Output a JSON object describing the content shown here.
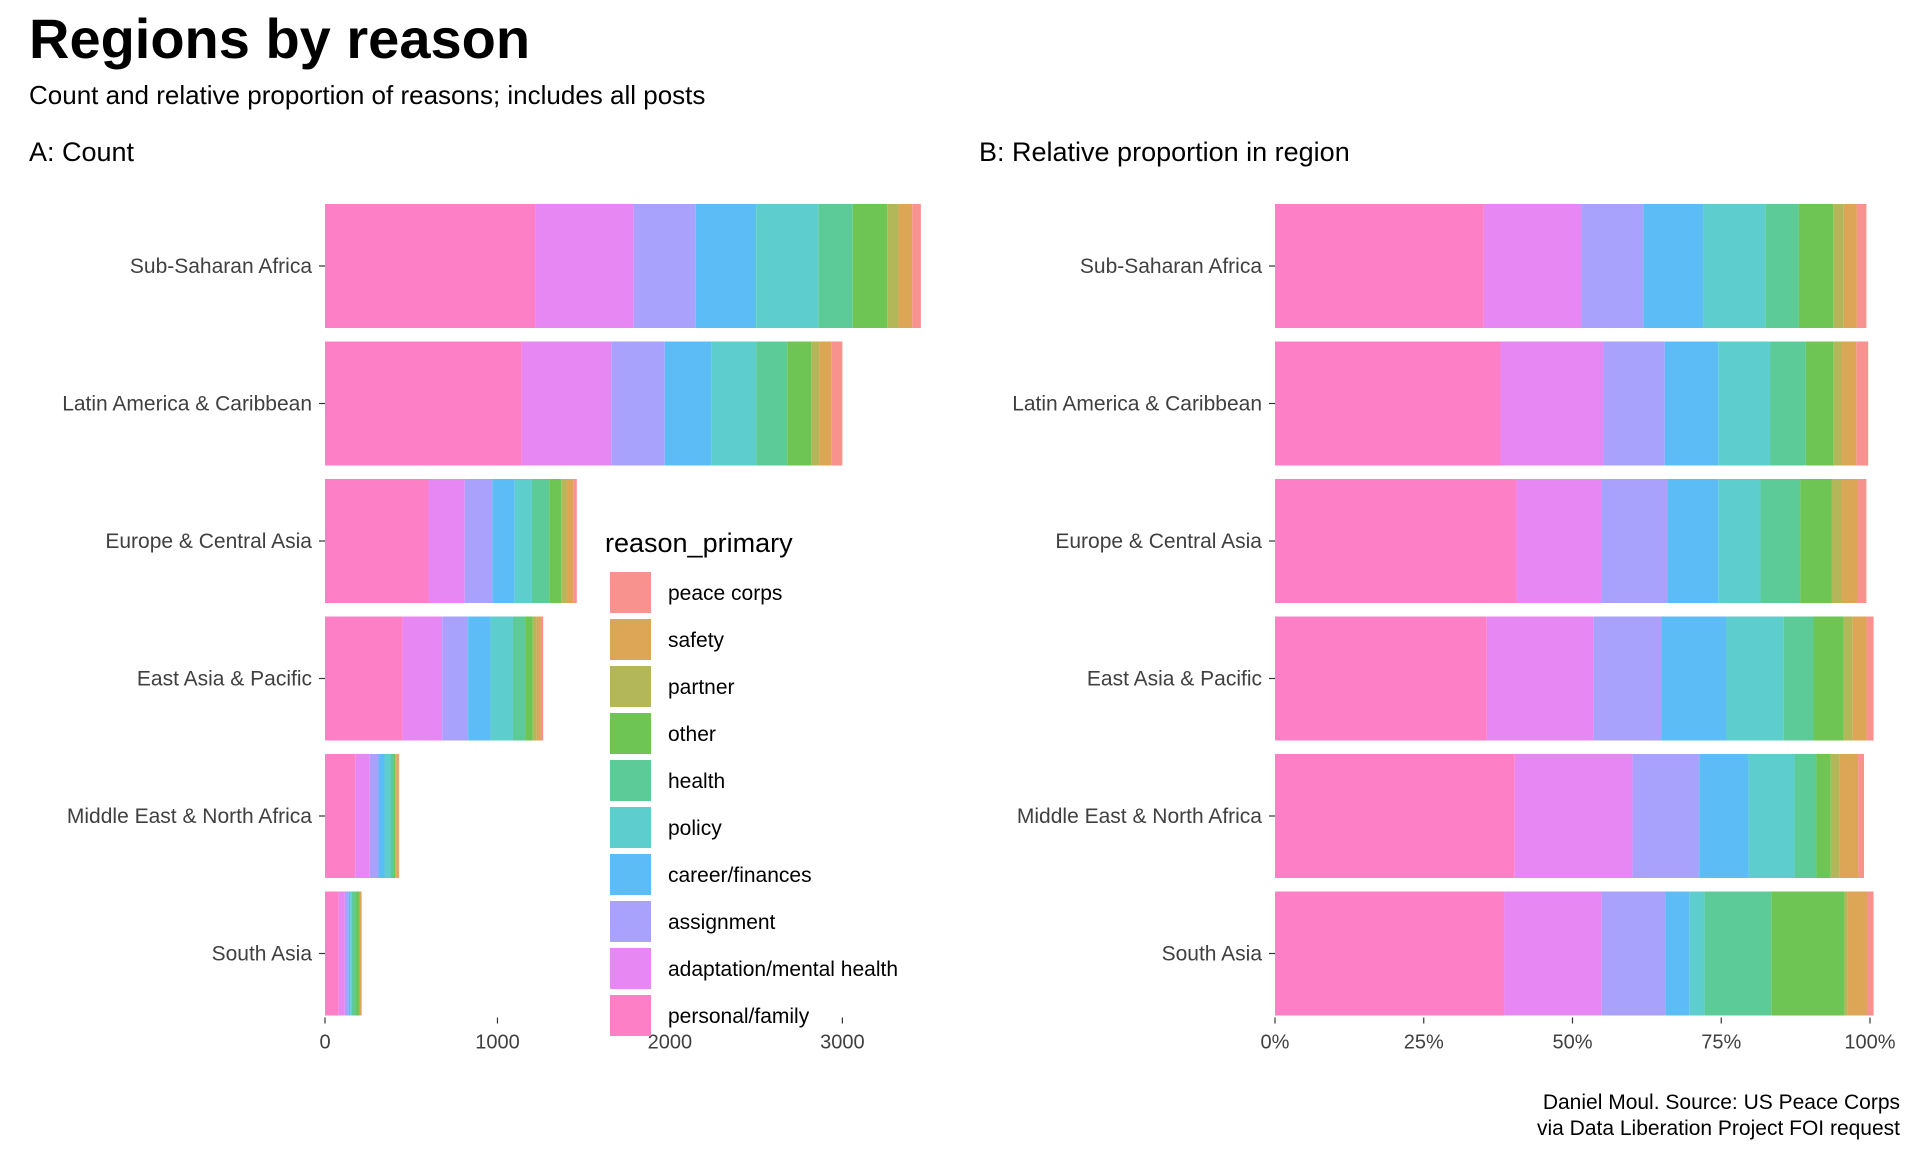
{
  "title": "Regions by reason",
  "subtitle": "Count and relative proportion of reasons; includes all posts",
  "caption": {
    "line1": "Daniel Moul. Source: US Peace Corps",
    "line2": "via Data Liberation Project FOI request"
  },
  "legend": {
    "title": "reason_primary",
    "items": [
      {
        "label": "peace corps",
        "color": "#F8928E"
      },
      {
        "label": "safety",
        "color": "#DDA657"
      },
      {
        "label": "partner",
        "color": "#B4B65A"
      },
      {
        "label": "other",
        "color": "#6EC553"
      },
      {
        "label": "health",
        "color": "#5CCB98"
      },
      {
        "label": "policy",
        "color": "#5ECDCD"
      },
      {
        "label": "career/finances",
        "color": "#5CBCF5"
      },
      {
        "label": "assignment",
        "color": "#A8A2FC"
      },
      {
        "label": "adaptation/mental health",
        "color": "#E787F3"
      },
      {
        "label": "personal/family",
        "color": "#FD80C7"
      }
    ]
  },
  "chart_data": [
    {
      "type": "bar",
      "orientation": "horizontal",
      "stacked": true,
      "title": "A: Count",
      "xlabel": "",
      "ylabel": "",
      "xlim": [
        0,
        3450
      ],
      "xticks": [
        0,
        1000,
        2000,
        3000
      ],
      "xtick_labels": [
        "0",
        "1000",
        "2000",
        "3000"
      ],
      "grid": false,
      "legend_position": "inside-right",
      "categories": [
        "Sub-Saharan Africa",
        "Latin America & Caribbean",
        "Europe & Central Asia",
        "East Asia & Pacific",
        "Middle East & North Africa",
        "South Asia"
      ],
      "series": [
        {
          "name": "personal/family",
          "values": [
            1220,
            1140,
            600,
            450,
            175,
            80
          ]
        },
        {
          "name": "adaptation/mental health",
          "values": [
            570,
            520,
            210,
            230,
            85,
            35
          ]
        },
        {
          "name": "assignment",
          "values": [
            360,
            310,
            160,
            150,
            50,
            22
          ]
        },
        {
          "name": "career/finances",
          "values": [
            350,
            270,
            130,
            130,
            35,
            10
          ]
        },
        {
          "name": "policy",
          "values": [
            360,
            260,
            100,
            130,
            35,
            5
          ]
        },
        {
          "name": "health",
          "values": [
            200,
            180,
            100,
            70,
            17,
            25
          ]
        },
        {
          "name": "other",
          "values": [
            200,
            140,
            70,
            45,
            10,
            25
          ]
        },
        {
          "name": "partner",
          "values": [
            65,
            45,
            30,
            22,
            6,
            1
          ]
        },
        {
          "name": "safety",
          "values": [
            80,
            70,
            40,
            25,
            15,
            8
          ]
        },
        {
          "name": "peace corps",
          "values": [
            50,
            65,
            20,
            13,
            2,
            2
          ]
        }
      ]
    },
    {
      "type": "bar",
      "orientation": "horizontal",
      "stacked": true,
      "title": "B: Relative proportion in region",
      "xlabel": "",
      "ylabel": "",
      "xlim": [
        0,
        100
      ],
      "xticks": [
        0,
        25,
        50,
        75,
        100
      ],
      "xtick_labels": [
        "0%",
        "25%",
        "50%",
        "75%",
        "100%"
      ],
      "grid": false,
      "categories": [
        "Sub-Saharan Africa",
        "Latin America & Caribbean",
        "Europe & Central Asia",
        "East Asia & Pacific",
        "Middle East & North Africa",
        "South Asia"
      ],
      "series": [
        {
          "name": "personal/family",
          "values": [
            35.1,
            37.9,
            40.6,
            35.6,
            40.3,
            38.5
          ]
        },
        {
          "name": "adaptation/mental health",
          "values": [
            16.4,
            17.3,
            14.2,
            17.9,
            19.8,
            16.4
          ]
        },
        {
          "name": "assignment",
          "values": [
            10.4,
            10.3,
            11.1,
            11.4,
            11.2,
            10.7
          ]
        },
        {
          "name": "career/finances",
          "values": [
            10.1,
            9.0,
            8.6,
            10.9,
            8.3,
            4.1
          ]
        },
        {
          "name": "policy",
          "values": [
            10.4,
            8.7,
            7.1,
            9.7,
            7.7,
            2.5
          ]
        },
        {
          "name": "health",
          "values": [
            5.6,
            6.0,
            6.7,
            5.0,
            3.7,
            11.2
          ]
        },
        {
          "name": "other",
          "values": [
            5.8,
            4.7,
            5.3,
            5.1,
            2.4,
            12.3
          ]
        },
        {
          "name": "partner",
          "values": [
            1.8,
            1.4,
            1.7,
            1.5,
            1.5,
            0.5
          ]
        },
        {
          "name": "safety",
          "values": [
            2.2,
            2.4,
            2.6,
            2.3,
            3.1,
            3.3
          ]
        },
        {
          "name": "peace corps",
          "values": [
            1.6,
            2.0,
            1.5,
            1.2,
            1.0,
            1.1
          ]
        }
      ]
    }
  ]
}
